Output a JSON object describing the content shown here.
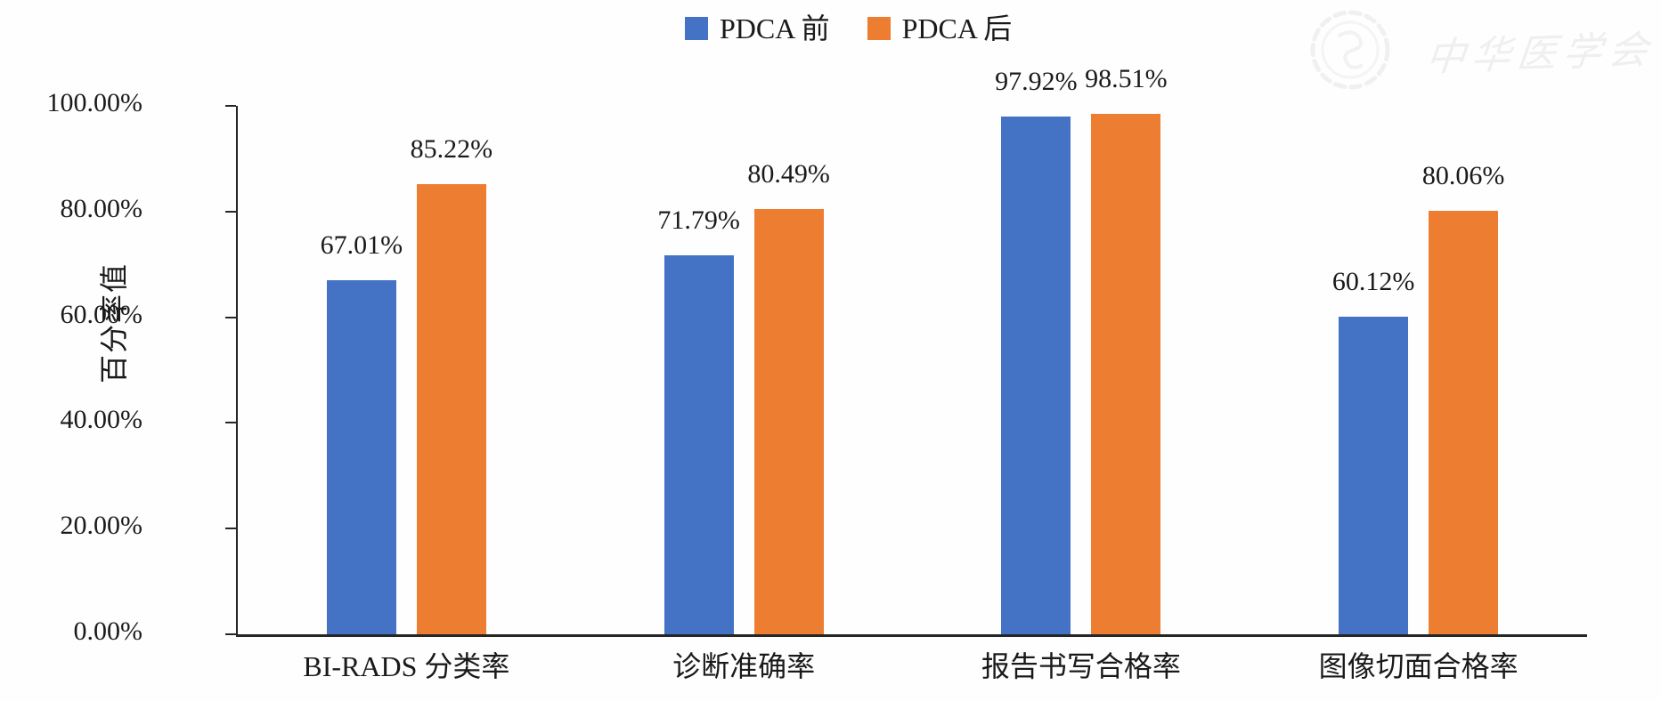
{
  "legend": [
    {
      "label": "PDCA 前",
      "color": "#4472C4"
    },
    {
      "label": "PDCA 后",
      "color": "#ED7D31"
    }
  ],
  "watermark": {
    "text": "中华医学会"
  },
  "chart_data": {
    "type": "bar",
    "categories": [
      "BI-RADS 分类率",
      "诊断准确率",
      "报告书写合格率",
      "图像切面合格率"
    ],
    "series": [
      {
        "name": "PDCA 前",
        "color": "#4472C4",
        "values": [
          67.01,
          71.79,
          97.92,
          60.12
        ],
        "labels": [
          "67.01%",
          "71.79%",
          "97.92%",
          "60.12%"
        ]
      },
      {
        "name": "PDCA 后",
        "color": "#ED7D31",
        "values": [
          85.22,
          80.49,
          98.51,
          80.06
        ],
        "labels": [
          "85.22%",
          "80.49%",
          "98.51%",
          "80.06%"
        ]
      }
    ],
    "ylabel": "百分率值",
    "xlabel": "",
    "ylim": [
      0,
      100
    ],
    "ytick_labels": [
      "0.00%",
      "20.00%",
      "40.00%",
      "60.00%",
      "80.00%",
      "100.00%"
    ],
    "grid": false,
    "legend_position": "top-center"
  }
}
